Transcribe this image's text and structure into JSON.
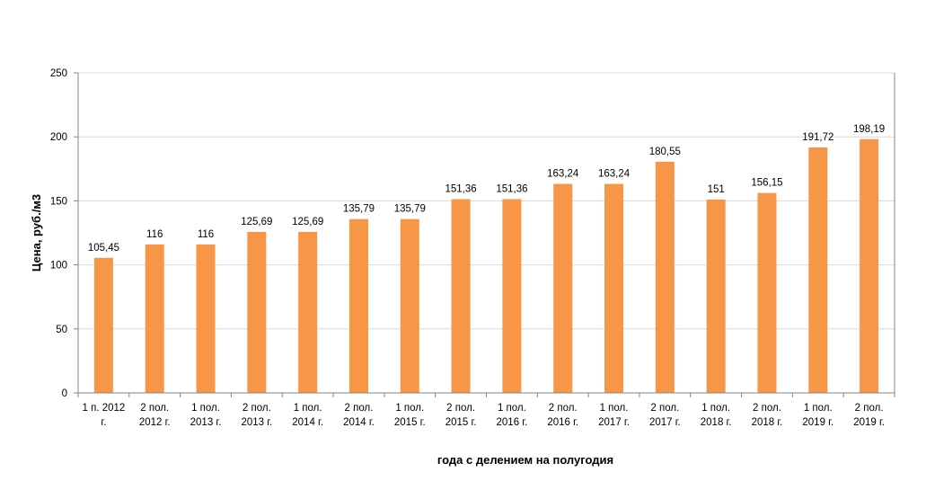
{
  "chart_data": {
    "type": "bar",
    "title": "",
    "ylabel": "Цена, руб./м3",
    "xlabel": "года с делением на полугодия",
    "ylim": [
      0,
      250
    ],
    "yticks": [
      0,
      50,
      100,
      150,
      200,
      250
    ],
    "grid": true,
    "legend": "none",
    "bar_color": "#F79646",
    "categories": [
      [
        "1 п. 2012",
        "г."
      ],
      [
        "2 пол.",
        "2012 г."
      ],
      [
        "1 пол.",
        "2013 г."
      ],
      [
        "2 пол.",
        "2013 г."
      ],
      [
        "1 пол.",
        "2014 г."
      ],
      [
        "2 пол.",
        "2014 г."
      ],
      [
        "1 пол.",
        "2015 г."
      ],
      [
        "2 пол.",
        "2015 г."
      ],
      [
        "1 пол.",
        "2016 г."
      ],
      [
        "2 пол.",
        "2016 г."
      ],
      [
        "1 пол.",
        "2017 г."
      ],
      [
        "2 пол.",
        "2017 г."
      ],
      [
        "1 пол.",
        "2018 г."
      ],
      [
        "2 пол.",
        "2018 г."
      ],
      [
        "1 пол.",
        "2019 г."
      ],
      [
        "2 пол.",
        "2019 г."
      ]
    ],
    "values": [
      105.45,
      116,
      116,
      125.69,
      125.69,
      135.79,
      135.79,
      151.36,
      151.36,
      163.24,
      163.24,
      180.55,
      151,
      156.15,
      191.72,
      198.19
    ],
    "data_labels": [
      "105,45",
      "116",
      "116",
      "125,69",
      "125,69",
      "135,79",
      "135,79",
      "151,36",
      "151,36",
      "163,24",
      "163,24",
      "180,55",
      "151",
      "156,15",
      "191,72",
      "198,19"
    ]
  }
}
